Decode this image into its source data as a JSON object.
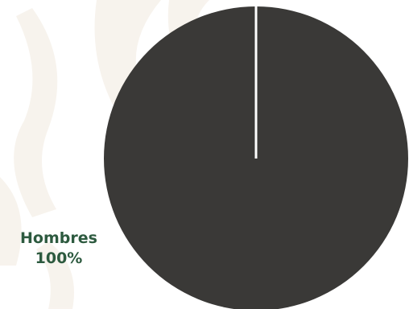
{
  "chart_data": {
    "type": "pie",
    "title": "",
    "slices": [
      {
        "label": "Hombres",
        "value": 100,
        "value_label": "100%",
        "color": "#3a3937"
      }
    ],
    "legend": "none",
    "label_color": "#2d5a3f",
    "divider_color": "#ffffff"
  }
}
